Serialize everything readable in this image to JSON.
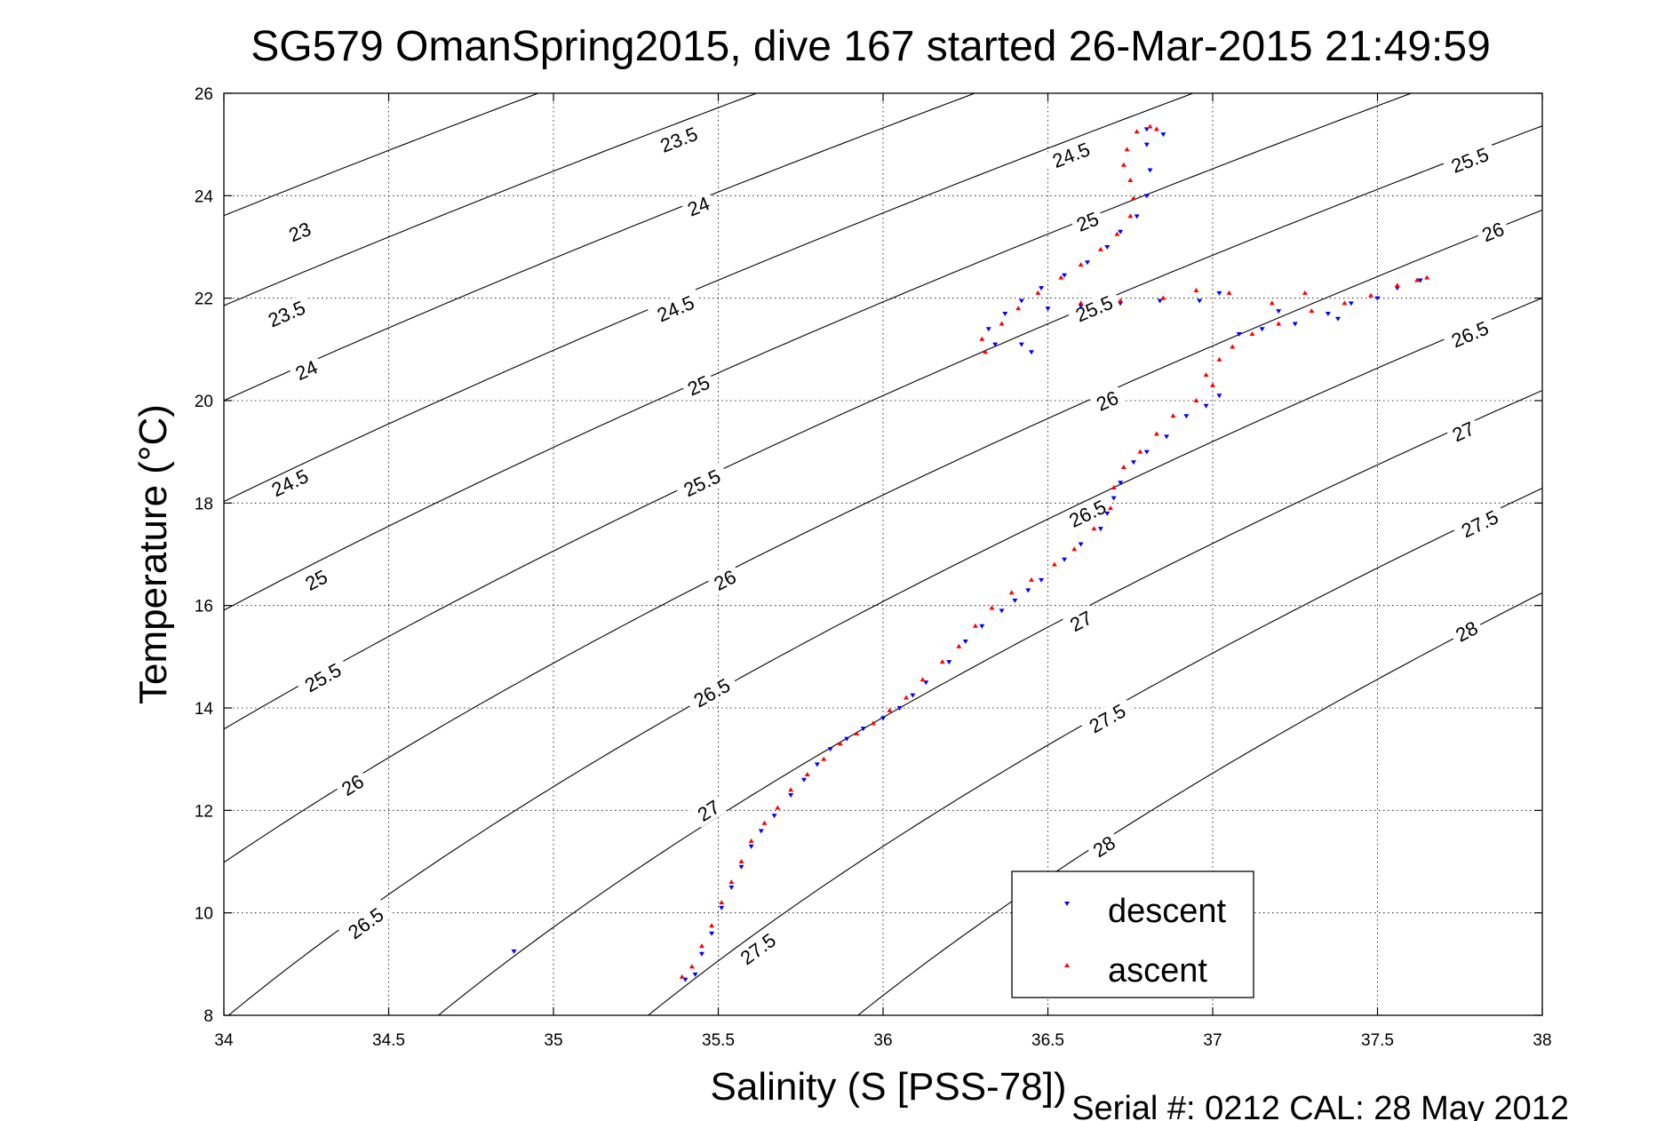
{
  "chart_data": {
    "type": "scatter",
    "title": "SG579 OmanSpring2015, dive 167 started 26-Mar-2015 21:49:59",
    "xlabel": "Salinity (S [PSS-78])",
    "ylabel": "Temperature (°C)",
    "xlim": [
      34,
      38
    ],
    "ylim": [
      8,
      26
    ],
    "xticks": [
      "34",
      "34.5",
      "35",
      "35.5",
      "36",
      "36.5",
      "37",
      "37.5",
      "38"
    ],
    "yticks": [
      "8",
      "10",
      "12",
      "14",
      "16",
      "18",
      "20",
      "22",
      "24",
      "26"
    ],
    "grid": true,
    "legend_position": "bottom-right",
    "footer": "Serial #: 0212  CAL: 28 May 2012",
    "density_contours": {
      "levels": [
        23,
        23.5,
        24,
        24.5,
        25,
        25.5,
        26,
        26.5,
        27,
        27.5,
        28
      ],
      "label_text": {
        "23": "23",
        "23.5": "23.5",
        "24": "24",
        "24.5": "24.5",
        "25": "25",
        "25.5": "25.5",
        "26": "26",
        "26.5": "26.5",
        "27": "27",
        "27.5": "27.5",
        "28": "28"
      },
      "color": "#000000",
      "labels": [
        {
          "level": 23,
          "s": 34.23,
          "t": 23.3
        },
        {
          "level": 23.5,
          "s": 34.19,
          "t": 21.7
        },
        {
          "level": 24,
          "s": 34.25,
          "t": 20.6
        },
        {
          "level": 24.5,
          "s": 34.2,
          "t": 18.4
        },
        {
          "level": 25,
          "s": 34.28,
          "t": 16.5
        },
        {
          "level": 25.5,
          "s": 34.3,
          "t": 14.6
        },
        {
          "level": 26,
          "s": 34.39,
          "t": 12.5
        },
        {
          "level": 26.5,
          "s": 34.43,
          "t": 9.8
        },
        {
          "level": 23.5,
          "s": 35.38,
          "t": 25.1
        },
        {
          "level": 24,
          "s": 35.44,
          "t": 23.8
        },
        {
          "level": 24.5,
          "s": 35.37,
          "t": 21.8
        },
        {
          "level": 25,
          "s": 35.44,
          "t": 20.3
        },
        {
          "level": 25.5,
          "s": 35.45,
          "t": 18.4
        },
        {
          "level": 26,
          "s": 35.52,
          "t": 16.5
        },
        {
          "level": 26.5,
          "s": 35.48,
          "t": 14.3
        },
        {
          "level": 27,
          "s": 35.47,
          "t": 12.0
        },
        {
          "level": 27.5,
          "s": 35.62,
          "t": 9.3
        },
        {
          "level": 24.5,
          "s": 36.57,
          "t": 24.8
        },
        {
          "level": 25,
          "s": 36.62,
          "t": 23.5
        },
        {
          "level": 25.5,
          "s": 36.64,
          "t": 21.8
        },
        {
          "level": 26,
          "s": 36.68,
          "t": 20.0
        },
        {
          "level": 26.5,
          "s": 36.62,
          "t": 17.8
        },
        {
          "level": 27,
          "s": 36.6,
          "t": 15.7
        },
        {
          "level": 27.5,
          "s": 36.68,
          "t": 13.8
        },
        {
          "level": 28,
          "s": 36.67,
          "t": 11.3
        },
        {
          "level": 25.5,
          "s": 37.78,
          "t": 24.7
        },
        {
          "level": 26,
          "s": 37.85,
          "t": 23.3
        },
        {
          "level": 26.5,
          "s": 37.78,
          "t": 21.3
        },
        {
          "level": 27,
          "s": 37.76,
          "t": 19.4
        },
        {
          "level": 27.5,
          "s": 37.81,
          "t": 17.6
        },
        {
          "level": 28,
          "s": 37.77,
          "t": 15.5
        }
      ]
    },
    "series": [
      {
        "name": "descent",
        "color": "#0000ff",
        "marker": "triangle-down",
        "points": [
          [
            34.88,
            9.25
          ],
          [
            35.4,
            8.7
          ],
          [
            35.43,
            8.8
          ],
          [
            35.45,
            9.2
          ],
          [
            35.48,
            9.6
          ],
          [
            35.51,
            10.1
          ],
          [
            35.54,
            10.5
          ],
          [
            35.57,
            10.9
          ],
          [
            35.6,
            11.3
          ],
          [
            35.63,
            11.6
          ],
          [
            35.67,
            11.9
          ],
          [
            35.72,
            12.3
          ],
          [
            35.76,
            12.6
          ],
          [
            35.8,
            12.9
          ],
          [
            35.84,
            13.2
          ],
          [
            35.89,
            13.4
          ],
          [
            35.94,
            13.6
          ],
          [
            36.0,
            13.8
          ],
          [
            36.05,
            14.0
          ],
          [
            36.09,
            14.25
          ],
          [
            36.13,
            14.5
          ],
          [
            36.2,
            14.9
          ],
          [
            36.25,
            15.3
          ],
          [
            36.3,
            15.6
          ],
          [
            36.36,
            15.9
          ],
          [
            36.4,
            16.1
          ],
          [
            36.44,
            16.3
          ],
          [
            36.48,
            16.5
          ],
          [
            36.55,
            16.9
          ],
          [
            36.6,
            17.2
          ],
          [
            36.66,
            17.5
          ],
          [
            36.68,
            17.8
          ],
          [
            36.7,
            18.1
          ],
          [
            36.72,
            18.4
          ],
          [
            36.76,
            18.8
          ],
          [
            36.8,
            19.0
          ],
          [
            36.86,
            19.3
          ],
          [
            36.92,
            19.7
          ],
          [
            36.98,
            19.9
          ],
          [
            37.02,
            20.1
          ],
          [
            37.08,
            21.3
          ],
          [
            37.15,
            21.4
          ],
          [
            37.25,
            21.5
          ],
          [
            37.35,
            21.7
          ],
          [
            37.42,
            21.9
          ],
          [
            37.5,
            22.0
          ],
          [
            37.56,
            22.2
          ],
          [
            37.63,
            22.35
          ],
          [
            37.38,
            21.6
          ],
          [
            37.2,
            21.75
          ],
          [
            36.96,
            21.95
          ],
          [
            37.02,
            22.1
          ],
          [
            36.84,
            21.95
          ],
          [
            36.72,
            21.9
          ],
          [
            36.6,
            21.85
          ],
          [
            36.5,
            21.8
          ],
          [
            36.34,
            21.1
          ],
          [
            36.32,
            21.4
          ],
          [
            36.37,
            21.7
          ],
          [
            36.42,
            21.95
          ],
          [
            36.48,
            22.2
          ],
          [
            36.55,
            22.45
          ],
          [
            36.62,
            22.7
          ],
          [
            36.68,
            23.0
          ],
          [
            36.72,
            23.3
          ],
          [
            36.77,
            23.6
          ],
          [
            36.8,
            24.0
          ],
          [
            36.81,
            24.5
          ],
          [
            36.8,
            25.0
          ],
          [
            36.85,
            25.2
          ],
          [
            36.8,
            25.3
          ],
          [
            36.42,
            21.1
          ],
          [
            36.45,
            20.95
          ]
        ]
      },
      {
        "name": "ascent",
        "color": "#ff0000",
        "marker": "triangle-up",
        "points": [
          [
            35.39,
            8.75
          ],
          [
            35.42,
            8.95
          ],
          [
            35.45,
            9.35
          ],
          [
            35.48,
            9.75
          ],
          [
            35.51,
            10.2
          ],
          [
            35.54,
            10.6
          ],
          [
            35.57,
            11.0
          ],
          [
            35.6,
            11.4
          ],
          [
            35.64,
            11.75
          ],
          [
            35.68,
            12.05
          ],
          [
            35.72,
            12.4
          ],
          [
            35.77,
            12.7
          ],
          [
            35.82,
            13.0
          ],
          [
            35.87,
            13.3
          ],
          [
            35.92,
            13.5
          ],
          [
            35.97,
            13.7
          ],
          [
            36.02,
            13.95
          ],
          [
            36.07,
            14.2
          ],
          [
            36.12,
            14.55
          ],
          [
            36.18,
            14.9
          ],
          [
            36.23,
            15.2
          ],
          [
            36.28,
            15.6
          ],
          [
            36.33,
            15.95
          ],
          [
            36.39,
            16.25
          ],
          [
            36.45,
            16.5
          ],
          [
            36.52,
            16.8
          ],
          [
            36.58,
            17.1
          ],
          [
            36.64,
            17.5
          ],
          [
            36.69,
            17.9
          ],
          [
            36.7,
            18.3
          ],
          [
            36.73,
            18.7
          ],
          [
            36.78,
            19.0
          ],
          [
            36.83,
            19.35
          ],
          [
            36.88,
            19.7
          ],
          [
            36.95,
            20.0
          ],
          [
            37.0,
            20.3
          ],
          [
            36.98,
            20.5
          ],
          [
            37.02,
            20.8
          ],
          [
            37.06,
            21.05
          ],
          [
            37.12,
            21.3
          ],
          [
            37.2,
            21.5
          ],
          [
            37.3,
            21.75
          ],
          [
            37.4,
            21.9
          ],
          [
            37.48,
            22.05
          ],
          [
            37.56,
            22.25
          ],
          [
            37.62,
            22.35
          ],
          [
            37.65,
            22.4
          ],
          [
            37.28,
            22.1
          ],
          [
            37.18,
            21.9
          ],
          [
            37.05,
            22.1
          ],
          [
            36.95,
            22.15
          ],
          [
            36.85,
            22.0
          ],
          [
            36.72,
            21.95
          ],
          [
            36.6,
            21.9
          ],
          [
            36.31,
            20.95
          ],
          [
            36.3,
            21.2
          ],
          [
            36.36,
            21.5
          ],
          [
            36.41,
            21.8
          ],
          [
            36.47,
            22.1
          ],
          [
            36.54,
            22.4
          ],
          [
            36.6,
            22.65
          ],
          [
            36.66,
            22.95
          ],
          [
            36.71,
            23.25
          ],
          [
            36.75,
            23.6
          ],
          [
            36.76,
            23.95
          ],
          [
            36.75,
            24.3
          ],
          [
            36.73,
            24.6
          ],
          [
            36.74,
            24.9
          ],
          [
            36.77,
            25.25
          ],
          [
            36.81,
            25.35
          ],
          [
            36.83,
            25.3
          ]
        ]
      }
    ]
  }
}
